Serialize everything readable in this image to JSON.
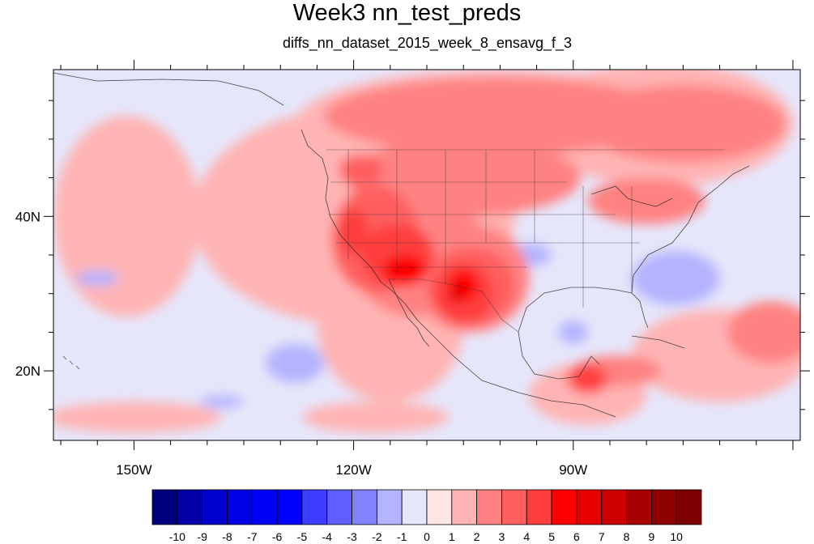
{
  "title": "Week3 nn_test_preds",
  "subtitle": "diffs_nn_dataset_2015_week_8_ensavg_f_3",
  "map": {
    "lon_range": [
      -161,
      -59
    ],
    "lat_range": [
      11,
      59
    ],
    "lon_ticks": [
      {
        "value": -150,
        "label": "150W"
      },
      {
        "value": -120,
        "label": "120W"
      },
      {
        "value": -90,
        "label": "90W"
      }
    ],
    "lat_ticks": [
      {
        "value": 40,
        "label": "40N"
      },
      {
        "value": 20,
        "label": "20N"
      }
    ],
    "background_color": "#e6e6fa",
    "coastline_color": "#222222"
  },
  "colorbar": {
    "labels": [
      "-10",
      "-9",
      "-8",
      "-7",
      "-6",
      "-5",
      "-4",
      "-3",
      "-2",
      "-1",
      "0",
      "1",
      "2",
      "3",
      "4",
      "5",
      "6",
      "7",
      "8",
      "9",
      "10"
    ],
    "colors": [
      "#00007f",
      "#0000a6",
      "#0000cc",
      "#0000e6",
      "#0000f5",
      "#0000ff",
      "#3d3dff",
      "#5f5fff",
      "#8282ff",
      "#b4b4ff",
      "#e6e6fa",
      "#ffe6e6",
      "#ffb4b4",
      "#ff8282",
      "#ff5f5f",
      "#ff3d3d",
      "#ff0000",
      "#e60000",
      "#cc0000",
      "#a60000",
      "#8c0000",
      "#7f0000"
    ]
  },
  "anomaly_regions": [
    {
      "level": 1,
      "lon": -120,
      "lat": 40,
      "rx": 22,
      "ry": 14
    },
    {
      "level": 1,
      "lon": -100,
      "lat": 52,
      "rx": 28,
      "ry": 7
    },
    {
      "level": 1,
      "lon": -78,
      "lat": 52,
      "rx": 18,
      "ry": 8
    },
    {
      "level": 1,
      "lon": -115,
      "lat": 26,
      "rx": 10,
      "ry": 10
    },
    {
      "level": 1,
      "lon": -70,
      "lat": 22,
      "rx": 12,
      "ry": 6
    },
    {
      "level": 1,
      "lon": -88,
      "lat": 17,
      "rx": 8,
      "ry": 4
    },
    {
      "level": 1,
      "lon": -150,
      "lat": 14,
      "rx": 12,
      "ry": 2
    },
    {
      "level": 2,
      "lon": -100,
      "lat": 53,
      "rx": 24,
      "ry": 5
    },
    {
      "level": 2,
      "lon": -75,
      "lat": 52,
      "rx": 14,
      "ry": 5
    },
    {
      "level": 2,
      "lon": -105,
      "lat": 45,
      "rx": 16,
      "ry": 5
    },
    {
      "level": 2,
      "lon": -80,
      "lat": 42,
      "rx": 8,
      "ry": 3
    },
    {
      "level": 2,
      "lon": -112,
      "lat": 37,
      "rx": 9,
      "ry": 10
    },
    {
      "level": 2,
      "lon": -104,
      "lat": 32,
      "rx": 8,
      "ry": 7
    },
    {
      "level": 2,
      "lon": -63,
      "lat": 25,
      "rx": 6,
      "ry": 4
    },
    {
      "level": 2,
      "lon": -84,
      "lat": 20,
      "rx": 6,
      "ry": 2
    },
    {
      "level": 3,
      "lon": -117,
      "lat": 37,
      "rx": 6,
      "ry": 7
    },
    {
      "level": 3,
      "lon": -104,
      "lat": 31,
      "rx": 6,
      "ry": 5
    },
    {
      "level": 3,
      "lon": -119,
      "lat": 46,
      "rx": 3,
      "ry": 2
    },
    {
      "level": 3,
      "lon": -88,
      "lat": 19,
      "rx": 3,
      "ry": 2
    },
    {
      "level": 4,
      "lon": -114,
      "lat": 35,
      "rx": 5,
      "ry": 4
    },
    {
      "level": 4,
      "lon": -105,
      "lat": 30,
      "rx": 4,
      "ry": 4
    },
    {
      "level": 4,
      "lon": -120,
      "lat": 38,
      "rx": 2,
      "ry": 3
    },
    {
      "level": 4,
      "lon": -88,
      "lat": 19,
      "rx": 2,
      "ry": 1.5
    },
    {
      "level": 5,
      "lon": -113,
      "lat": 33,
      "rx": 3,
      "ry": 2
    },
    {
      "level": 5,
      "lon": -105,
      "lat": 31,
      "rx": 2,
      "ry": 2
    },
    {
      "level": 6,
      "lon": -106,
      "lat": 30,
      "rx": 1.2,
      "ry": 1.2
    },
    {
      "level": 1,
      "lon": -151,
      "lat": 40,
      "rx": 10,
      "ry": 13
    },
    {
      "level": 1,
      "lon": -117,
      "lat": 14,
      "rx": 10,
      "ry": 2
    },
    {
      "level": -1,
      "lon": -128,
      "lat": 21,
      "rx": 4,
      "ry": 2.5
    },
    {
      "level": -1,
      "lon": -155,
      "lat": 32,
      "rx": 3,
      "ry": 1
    },
    {
      "level": -1,
      "lon": -76,
      "lat": 32,
      "rx": 6,
      "ry": 3.5
    },
    {
      "level": -1,
      "lon": -90,
      "lat": 25,
      "rx": 2,
      "ry": 1.5
    },
    {
      "level": -1,
      "lon": -96,
      "lat": 35,
      "rx": 3,
      "ry": 1.5
    },
    {
      "level": -1,
      "lon": -138,
      "lat": 16,
      "rx": 3,
      "ry": 0.8
    }
  ]
}
